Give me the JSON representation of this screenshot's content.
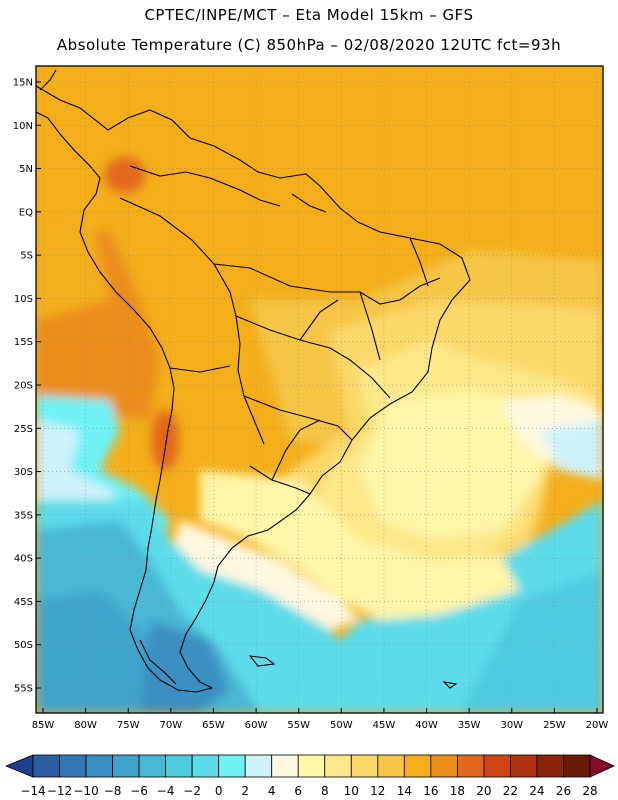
{
  "header": {
    "line1": "CPTEC/INPE/MCT –  Eta Model 15km – GFS",
    "line2": "Absolute Temperature (C) 850hPa – 02/08/2020 12UTC fct=93h"
  },
  "axes": {
    "lat_labels": [
      "15N",
      "10N",
      "5N",
      "EQ",
      "5S",
      "10S",
      "15S",
      "20S",
      "25S",
      "30S",
      "35S",
      "40S",
      "45S",
      "50S",
      "55S"
    ],
    "lon_labels": [
      "85W",
      "80W",
      "75W",
      "70W",
      "65W",
      "60W",
      "55W",
      "50W",
      "45W",
      "40W",
      "35W",
      "30W",
      "25W",
      "20W"
    ]
  },
  "colorbar": {
    "labels": [
      "-14",
      "-12",
      "-10",
      "-8",
      "-6",
      "-4",
      "-2",
      "0",
      "2",
      "4",
      "6",
      "8",
      "10",
      "12",
      "14",
      "16",
      "18",
      "20",
      "22",
      "24",
      "26",
      "28"
    ],
    "colors": [
      "#1f3f8f",
      "#2a5ea3",
      "#3277b3",
      "#3a8fc2",
      "#41a3cc",
      "#48b8d6",
      "#4fcbe0",
      "#5cdcea",
      "#6ff2f5",
      "#cff3fb",
      "#fff8e0",
      "#fff6a8",
      "#fde88a",
      "#fbd86a",
      "#f7c646",
      "#f3ae1a",
      "#ec8e1c",
      "#e2671a",
      "#cc4613",
      "#b0320e",
      "#8c240c",
      "#6a1a0a",
      "#8a0a2a"
    ]
  }
}
